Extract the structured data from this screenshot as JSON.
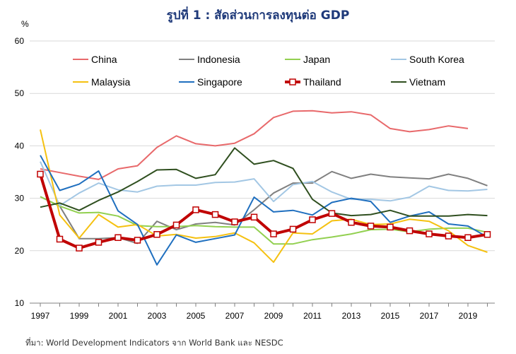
{
  "chart_data": {
    "type": "line",
    "title": "รูปที่ 1 : สัดส่วนการลงทุนต่อ GDP",
    "ylabel": "%",
    "xlabel": "",
    "ylim": [
      10,
      60
    ],
    "xlim": [
      1997,
      2020
    ],
    "yticks": [
      10,
      20,
      30,
      40,
      50,
      60
    ],
    "xticks": [
      1997,
      1999,
      2001,
      2003,
      2005,
      2007,
      2009,
      2011,
      2013,
      2015,
      2017,
      2019
    ],
    "grid": "horizontal",
    "legend": "top",
    "source": "ที่มา: World Development Indicators จาก World Bank และ NESDC",
    "series": [
      {
        "name": "China",
        "color": "#e8696b",
        "x": [
          1997,
          1998,
          1999,
          2000,
          2001,
          2002,
          2003,
          2004,
          2005,
          2006,
          2007,
          2008,
          2009,
          2010,
          2011,
          2012,
          2013,
          2014,
          2015,
          2016,
          2017,
          2018,
          2019
        ],
        "values": [
          35.6,
          34.9,
          34.2,
          33.6,
          35.6,
          36.2,
          39.7,
          41.9,
          40.4,
          40.0,
          40.5,
          42.3,
          45.4,
          46.6,
          46.7,
          46.3,
          46.5,
          45.9,
          43.3,
          42.7,
          43.1,
          43.8,
          43.3
        ]
      },
      {
        "name": "Indonesia",
        "color": "#808080",
        "x": [
          1997,
          1998,
          1999,
          2000,
          2001,
          2002,
          2003,
          2004,
          2005,
          2006,
          2007,
          2008,
          2009,
          2010,
          2011,
          2012,
          2013,
          2014,
          2015,
          2016,
          2017,
          2018,
          2019,
          2020
        ],
        "values": [
          30.3,
          28.5,
          22.3,
          22.3,
          22.5,
          21.4,
          25.6,
          24.0,
          25.1,
          25.4,
          24.9,
          27.8,
          31.0,
          32.9,
          32.9,
          35.1,
          33.8,
          34.6,
          34.1,
          33.9,
          33.7,
          34.6,
          33.8,
          32.4
        ]
      },
      {
        "name": "Japan",
        "color": "#92d050",
        "x": [
          1997,
          1998,
          1999,
          2000,
          2001,
          2002,
          2003,
          2004,
          2005,
          2006,
          2007,
          2008,
          2009,
          2010,
          2011,
          2012,
          2013,
          2014,
          2015,
          2016,
          2017,
          2018,
          2019,
          2020
        ],
        "values": [
          30.3,
          28.5,
          27.2,
          27.3,
          26.6,
          24.8,
          24.6,
          24.6,
          24.8,
          24.6,
          24.5,
          24.5,
          21.3,
          21.3,
          22.1,
          22.6,
          23.2,
          24.0,
          24.1,
          23.6,
          24.1,
          24.3,
          24.3,
          23.5
        ]
      },
      {
        "name": "South Korea",
        "color": "#a3c7e4",
        "x": [
          1997,
          1998,
          1999,
          2000,
          2001,
          2002,
          2003,
          2004,
          2005,
          2006,
          2007,
          2008,
          2009,
          2010,
          2011,
          2012,
          2013,
          2014,
          2015,
          2016,
          2017,
          2018,
          2019,
          2020
        ],
        "values": [
          37.0,
          28.6,
          31.0,
          32.9,
          31.6,
          31.2,
          32.3,
          32.5,
          32.5,
          33.0,
          33.1,
          33.7,
          29.4,
          32.6,
          33.2,
          31.2,
          29.8,
          29.8,
          29.5,
          30.2,
          32.3,
          31.5,
          31.4,
          31.7
        ]
      },
      {
        "name": "Malaysia",
        "color": "#f5c111",
        "x": [
          1997,
          1998,
          1999,
          2000,
          2001,
          2002,
          2003,
          2004,
          2005,
          2006,
          2007,
          2008,
          2009,
          2010,
          2011,
          2012,
          2013,
          2014,
          2015,
          2016,
          2017,
          2018,
          2019,
          2020
        ],
        "values": [
          43.1,
          26.8,
          22.4,
          26.9,
          24.5,
          25.0,
          22.8,
          23.1,
          22.4,
          22.7,
          23.4,
          21.5,
          17.8,
          23.4,
          23.2,
          25.7,
          26.0,
          25.0,
          25.1,
          26.0,
          25.6,
          23.8,
          21.0,
          19.7
        ]
      },
      {
        "name": "Singapore",
        "color": "#1f6fbf",
        "x": [
          1997,
          1998,
          1999,
          2000,
          2001,
          2002,
          2003,
          2004,
          2005,
          2006,
          2007,
          2008,
          2009,
          2010,
          2011,
          2012,
          2013,
          2014,
          2015,
          2016,
          2017,
          2018,
          2019,
          2020
        ],
        "values": [
          38.2,
          31.5,
          32.7,
          35.2,
          27.6,
          25.0,
          17.3,
          23.0,
          21.6,
          22.3,
          23.0,
          30.2,
          27.4,
          27.7,
          26.8,
          29.2,
          30.0,
          29.4,
          25.4,
          26.6,
          27.4,
          25.1,
          24.7,
          22.6
        ]
      },
      {
        "name": "Thailand",
        "color": "#c00000",
        "x": [
          1997,
          1998,
          1999,
          2000,
          2001,
          2002,
          2003,
          2004,
          2005,
          2006,
          2007,
          2008,
          2009,
          2010,
          2011,
          2012,
          2013,
          2014,
          2015,
          2016,
          2017,
          2018,
          2019,
          2020
        ],
        "values": [
          34.6,
          22.2,
          20.5,
          21.6,
          22.5,
          22.0,
          23.1,
          24.9,
          27.8,
          26.9,
          25.5,
          26.4,
          23.2,
          24.1,
          25.9,
          27.1,
          25.4,
          24.7,
          24.5,
          23.8,
          23.2,
          22.8,
          22.5,
          23.1
        ]
      },
      {
        "name": "Vietnam",
        "color": "#2f4f1f",
        "x": [
          1997,
          1998,
          1999,
          2000,
          2001,
          2002,
          2003,
          2004,
          2005,
          2006,
          2007,
          2008,
          2009,
          2010,
          2011,
          2012,
          2013,
          2014,
          2015,
          2016,
          2017,
          2018,
          2019,
          2020
        ],
        "values": [
          28.3,
          29.1,
          27.7,
          29.6,
          31.2,
          33.2,
          35.4,
          35.5,
          33.8,
          34.5,
          39.6,
          36.5,
          37.2,
          35.7,
          29.8,
          27.2,
          26.7,
          26.9,
          27.7,
          26.6,
          26.6,
          26.6,
          26.9,
          26.7
        ]
      }
    ]
  }
}
